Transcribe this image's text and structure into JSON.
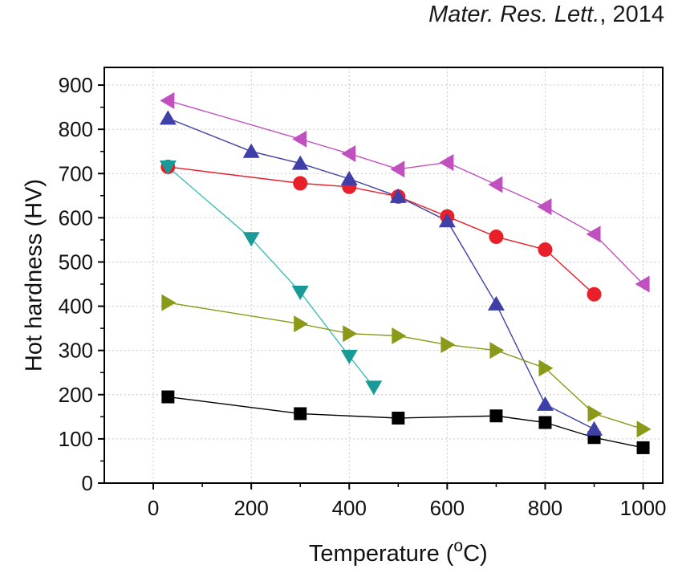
{
  "citation": {
    "journal": "Mater. Res. Lett.",
    "year": ", 2014"
  },
  "chart_data": {
    "type": "line",
    "title": "",
    "xlabel_main": "Temperature (",
    "xlabel_sup": "o",
    "xlabel_end": "C)",
    "ylabel": "Hot hardness (HV)",
    "xlim": [
      -100,
      1040
    ],
    "ylim": [
      0,
      940
    ],
    "xticks": [
      0,
      200,
      400,
      600,
      800,
      1000
    ],
    "yticks": [
      0,
      100,
      200,
      300,
      400,
      500,
      600,
      700,
      800,
      900
    ],
    "grid": true,
    "series": [
      {
        "marker": "square",
        "color": "#000000",
        "line_color": "#000000",
        "points": [
          [
            30,
            195
          ],
          [
            300,
            157
          ],
          [
            500,
            147
          ],
          [
            700,
            152
          ],
          [
            800,
            137
          ],
          [
            900,
            103
          ],
          [
            1000,
            80
          ]
        ]
      },
      {
        "marker": "circle",
        "color": "#e8202a",
        "line_color": "#e8202a",
        "points": [
          [
            30,
            715
          ],
          [
            300,
            678
          ],
          [
            400,
            670
          ],
          [
            500,
            648
          ],
          [
            600,
            603
          ],
          [
            700,
            557
          ],
          [
            800,
            528
          ],
          [
            900,
            427
          ]
        ]
      },
      {
        "marker": "triangle-up",
        "color": "#3f3fa8",
        "line_color": "#3f3fa8",
        "points": [
          [
            30,
            825
          ],
          [
            200,
            750
          ],
          [
            300,
            723
          ],
          [
            400,
            688
          ],
          [
            500,
            648
          ],
          [
            600,
            593
          ],
          [
            700,
            405
          ],
          [
            800,
            178
          ],
          [
            900,
            122
          ]
        ]
      },
      {
        "marker": "triangle-down",
        "color": "#1a9a96",
        "line_color": "#3cbcb4",
        "points": [
          [
            30,
            715
          ],
          [
            200,
            553
          ],
          [
            300,
            432
          ],
          [
            400,
            287
          ],
          [
            450,
            217
          ]
        ]
      },
      {
        "marker": "triangle-left",
        "color": "#c050c0",
        "line_color": "#c050c0",
        "points": [
          [
            30,
            865
          ],
          [
            300,
            778
          ],
          [
            400,
            745
          ],
          [
            500,
            710
          ],
          [
            600,
            725
          ],
          [
            700,
            675
          ],
          [
            800,
            625
          ],
          [
            900,
            563
          ],
          [
            1000,
            450
          ]
        ]
      },
      {
        "marker": "triangle-right",
        "color": "#8a9a18",
        "line_color": "#8a9a18",
        "points": [
          [
            30,
            408
          ],
          [
            300,
            360
          ],
          [
            400,
            338
          ],
          [
            500,
            333
          ],
          [
            600,
            313
          ],
          [
            700,
            300
          ],
          [
            800,
            260
          ],
          [
            900,
            157
          ],
          [
            1000,
            122
          ]
        ]
      }
    ]
  }
}
